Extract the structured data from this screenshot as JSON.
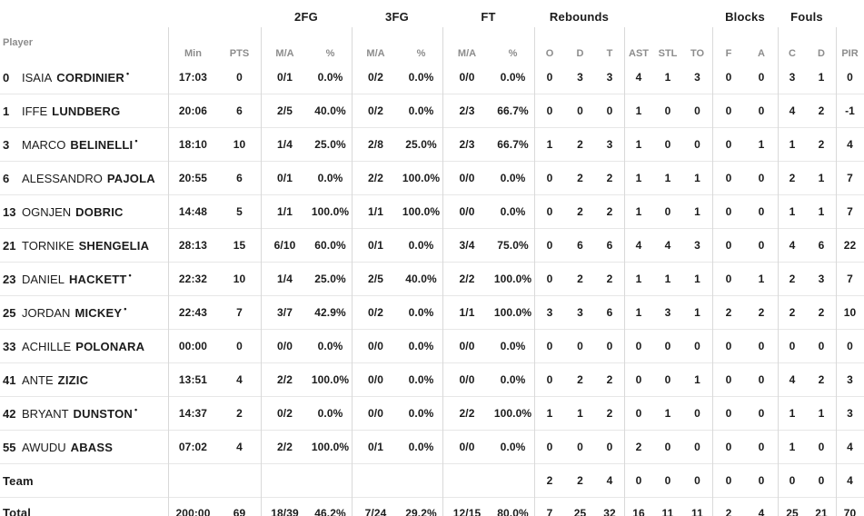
{
  "table": {
    "player_col_label": "Player",
    "group_headers": {
      "fg2": "2FG",
      "fg3": "3FG",
      "ft": "FT",
      "rebounds": "Rebounds",
      "blocks": "Blocks",
      "fouls": "Fouls"
    },
    "col_labels": [
      "Min",
      "PTS",
      "M/A",
      "%",
      "M/A",
      "%",
      "M/A",
      "%",
      "O",
      "D",
      "T",
      "AST",
      "STL",
      "TO",
      "F",
      "A",
      "C",
      "D",
      "PIR"
    ],
    "starter_mark": "•",
    "rows": [
      {
        "num": "0",
        "first": "ISAIA",
        "last": "CORDINIER",
        "starter": true,
        "min": "17:03",
        "pts": "0",
        "fg2_ma": "0/1",
        "fg2_pct": "0.0%",
        "fg3_ma": "0/2",
        "fg3_pct": "0.0%",
        "ft_ma": "0/0",
        "ft_pct": "0.0%",
        "reb_o": "0",
        "reb_d": "3",
        "reb_t": "3",
        "ast": "4",
        "stl": "1",
        "to": "3",
        "blk_f": "0",
        "blk_a": "0",
        "foul_c": "3",
        "foul_d": "1",
        "pir": "0"
      },
      {
        "num": "1",
        "first": "IFFE",
        "last": "LUNDBERG",
        "starter": false,
        "min": "20:06",
        "pts": "6",
        "fg2_ma": "2/5",
        "fg2_pct": "40.0%",
        "fg3_ma": "0/2",
        "fg3_pct": "0.0%",
        "ft_ma": "2/3",
        "ft_pct": "66.7%",
        "reb_o": "0",
        "reb_d": "0",
        "reb_t": "0",
        "ast": "1",
        "stl": "0",
        "to": "0",
        "blk_f": "0",
        "blk_a": "0",
        "foul_c": "4",
        "foul_d": "2",
        "pir": "-1"
      },
      {
        "num": "3",
        "first": "MARCO",
        "last": "BELINELLI",
        "starter": true,
        "min": "18:10",
        "pts": "10",
        "fg2_ma": "1/4",
        "fg2_pct": "25.0%",
        "fg3_ma": "2/8",
        "fg3_pct": "25.0%",
        "ft_ma": "2/3",
        "ft_pct": "66.7%",
        "reb_o": "1",
        "reb_d": "2",
        "reb_t": "3",
        "ast": "1",
        "stl": "0",
        "to": "0",
        "blk_f": "0",
        "blk_a": "1",
        "foul_c": "1",
        "foul_d": "2",
        "pir": "4"
      },
      {
        "num": "6",
        "first": "ALESSANDRO",
        "last": "PAJOLA",
        "starter": false,
        "min": "20:55",
        "pts": "6",
        "fg2_ma": "0/1",
        "fg2_pct": "0.0%",
        "fg3_ma": "2/2",
        "fg3_pct": "100.0%",
        "ft_ma": "0/0",
        "ft_pct": "0.0%",
        "reb_o": "0",
        "reb_d": "2",
        "reb_t": "2",
        "ast": "1",
        "stl": "1",
        "to": "1",
        "blk_f": "0",
        "blk_a": "0",
        "foul_c": "2",
        "foul_d": "1",
        "pir": "7"
      },
      {
        "num": "13",
        "first": "OGNJEN",
        "last": "DOBRIC",
        "starter": false,
        "min": "14:48",
        "pts": "5",
        "fg2_ma": "1/1",
        "fg2_pct": "100.0%",
        "fg3_ma": "1/1",
        "fg3_pct": "100.0%",
        "ft_ma": "0/0",
        "ft_pct": "0.0%",
        "reb_o": "0",
        "reb_d": "2",
        "reb_t": "2",
        "ast": "1",
        "stl": "0",
        "to": "1",
        "blk_f": "0",
        "blk_a": "0",
        "foul_c": "1",
        "foul_d": "1",
        "pir": "7"
      },
      {
        "num": "21",
        "first": "TORNIKE",
        "last": "SHENGELIA",
        "starter": false,
        "min": "28:13",
        "pts": "15",
        "fg2_ma": "6/10",
        "fg2_pct": "60.0%",
        "fg3_ma": "0/1",
        "fg3_pct": "0.0%",
        "ft_ma": "3/4",
        "ft_pct": "75.0%",
        "reb_o": "0",
        "reb_d": "6",
        "reb_t": "6",
        "ast": "4",
        "stl": "4",
        "to": "3",
        "blk_f": "0",
        "blk_a": "0",
        "foul_c": "4",
        "foul_d": "6",
        "pir": "22"
      },
      {
        "num": "23",
        "first": "DANIEL",
        "last": "HACKETT",
        "starter": true,
        "min": "22:32",
        "pts": "10",
        "fg2_ma": "1/4",
        "fg2_pct": "25.0%",
        "fg3_ma": "2/5",
        "fg3_pct": "40.0%",
        "ft_ma": "2/2",
        "ft_pct": "100.0%",
        "reb_o": "0",
        "reb_d": "2",
        "reb_t": "2",
        "ast": "1",
        "stl": "1",
        "to": "1",
        "blk_f": "0",
        "blk_a": "1",
        "foul_c": "2",
        "foul_d": "3",
        "pir": "7"
      },
      {
        "num": "25",
        "first": "JORDAN",
        "last": "MICKEY",
        "starter": true,
        "min": "22:43",
        "pts": "7",
        "fg2_ma": "3/7",
        "fg2_pct": "42.9%",
        "fg3_ma": "0/2",
        "fg3_pct": "0.0%",
        "ft_ma": "1/1",
        "ft_pct": "100.0%",
        "reb_o": "3",
        "reb_d": "3",
        "reb_t": "6",
        "ast": "1",
        "stl": "3",
        "to": "1",
        "blk_f": "2",
        "blk_a": "2",
        "foul_c": "2",
        "foul_d": "2",
        "pir": "10"
      },
      {
        "num": "33",
        "first": "ACHILLE",
        "last": "POLONARA",
        "starter": false,
        "min": "00:00",
        "pts": "0",
        "fg2_ma": "0/0",
        "fg2_pct": "0.0%",
        "fg3_ma": "0/0",
        "fg3_pct": "0.0%",
        "ft_ma": "0/0",
        "ft_pct": "0.0%",
        "reb_o": "0",
        "reb_d": "0",
        "reb_t": "0",
        "ast": "0",
        "stl": "0",
        "to": "0",
        "blk_f": "0",
        "blk_a": "0",
        "foul_c": "0",
        "foul_d": "0",
        "pir": "0"
      },
      {
        "num": "41",
        "first": "ANTE",
        "last": "ZIZIC",
        "starter": false,
        "min": "13:51",
        "pts": "4",
        "fg2_ma": "2/2",
        "fg2_pct": "100.0%",
        "fg3_ma": "0/0",
        "fg3_pct": "0.0%",
        "ft_ma": "0/0",
        "ft_pct": "0.0%",
        "reb_o": "0",
        "reb_d": "2",
        "reb_t": "2",
        "ast": "0",
        "stl": "0",
        "to": "1",
        "blk_f": "0",
        "blk_a": "0",
        "foul_c": "4",
        "foul_d": "2",
        "pir": "3"
      },
      {
        "num": "42",
        "first": "BRYANT",
        "last": "DUNSTON",
        "starter": true,
        "min": "14:37",
        "pts": "2",
        "fg2_ma": "0/2",
        "fg2_pct": "0.0%",
        "fg3_ma": "0/0",
        "fg3_pct": "0.0%",
        "ft_ma": "2/2",
        "ft_pct": "100.0%",
        "reb_o": "1",
        "reb_d": "1",
        "reb_t": "2",
        "ast": "0",
        "stl": "1",
        "to": "0",
        "blk_f": "0",
        "blk_a": "0",
        "foul_c": "1",
        "foul_d": "1",
        "pir": "3"
      },
      {
        "num": "55",
        "first": "AWUDU",
        "last": "ABASS",
        "starter": false,
        "min": "07:02",
        "pts": "4",
        "fg2_ma": "2/2",
        "fg2_pct": "100.0%",
        "fg3_ma": "0/1",
        "fg3_pct": "0.0%",
        "ft_ma": "0/0",
        "ft_pct": "0.0%",
        "reb_o": "0",
        "reb_d": "0",
        "reb_t": "0",
        "ast": "2",
        "stl": "0",
        "to": "0",
        "blk_f": "0",
        "blk_a": "0",
        "foul_c": "1",
        "foul_d": "0",
        "pir": "4"
      },
      {
        "num": "",
        "first": "",
        "last": "Team",
        "starter": false,
        "min": "",
        "pts": "",
        "fg2_ma": "",
        "fg2_pct": "",
        "fg3_ma": "",
        "fg3_pct": "",
        "ft_ma": "",
        "ft_pct": "",
        "reb_o": "2",
        "reb_d": "2",
        "reb_t": "4",
        "ast": "0",
        "stl": "0",
        "to": "0",
        "blk_f": "0",
        "blk_a": "0",
        "foul_c": "0",
        "foul_d": "0",
        "pir": "4"
      },
      {
        "num": "",
        "first": "",
        "last": "Total",
        "starter": false,
        "min": "200:00",
        "pts": "69",
        "fg2_ma": "18/39",
        "fg2_pct": "46.2%",
        "fg3_ma": "7/24",
        "fg3_pct": "29.2%",
        "ft_ma": "12/15",
        "ft_pct": "80.0%",
        "reb_o": "7",
        "reb_d": "25",
        "reb_t": "32",
        "ast": "16",
        "stl": "11",
        "to": "11",
        "blk_f": "2",
        "blk_a": "4",
        "foul_c": "25",
        "foul_d": "21",
        "pir": "70"
      }
    ]
  },
  "colors": {
    "text": "#1b1b1b",
    "muted_header": "#8c8c8c",
    "row_divider": "#e7e7e7",
    "column_divider": "#d9d9d9",
    "background": "#ffffff"
  }
}
